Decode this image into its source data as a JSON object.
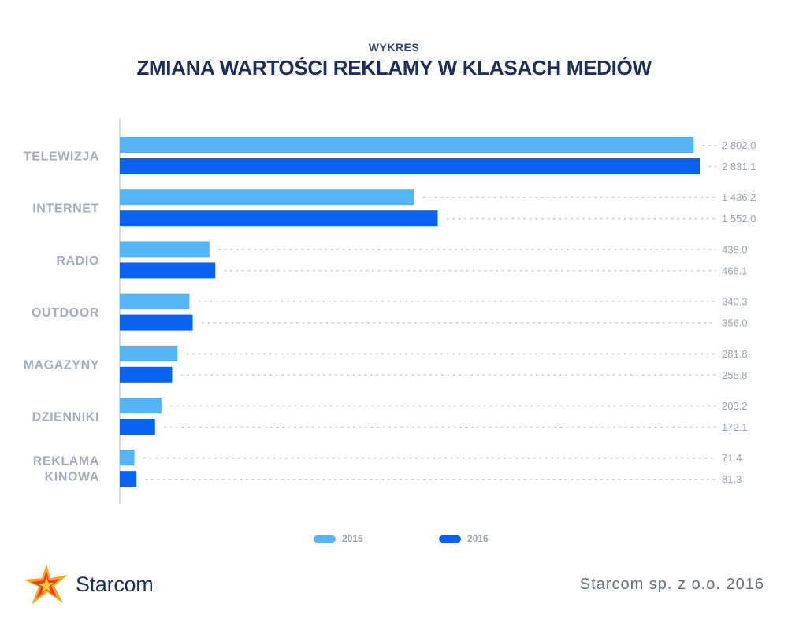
{
  "header": {
    "subtitle": "WYKRES",
    "title": "ZMIANA WARTOŚCI REKLAMY W KLASACH MEDIÓW"
  },
  "colors": {
    "series_2015": "#55b4f5",
    "series_2016": "#0a63f0",
    "label_gray": "#a3adbb",
    "title_navy": "#1d2f5c"
  },
  "chart_data": {
    "type": "bar",
    "orientation": "horizontal",
    "categories": [
      [
        "TELEWIZJA"
      ],
      [
        "INTERNET"
      ],
      [
        "RADIO"
      ],
      [
        "OUTDOOR"
      ],
      [
        "MAGAZYNY"
      ],
      [
        "DZIENNIKI"
      ],
      [
        "REKLAMA",
        "KINOWA"
      ]
    ],
    "series": [
      {
        "name": "2015",
        "values": [
          2802.0,
          1436.2,
          438.0,
          340.3,
          281.8,
          203.2,
          71.4
        ],
        "labels": [
          "2 802.0",
          "1 436.2",
          "438.0",
          "340.3",
          "281.8",
          "203.2",
          "71.4"
        ]
      },
      {
        "name": "2016",
        "values": [
          2831.1,
          1552.0,
          466.1,
          356.0,
          255.8,
          172.1,
          81.3
        ],
        "labels": [
          "2 831.1",
          "1 552.0",
          "466.1",
          "356.0",
          "255.8",
          "172.1",
          "81.3"
        ]
      }
    ],
    "xlim": [
      0,
      2831.1
    ],
    "grid": false,
    "legend": "bottom"
  },
  "legend": {
    "item_2015": "2015",
    "item_2016": "2016"
  },
  "logo": {
    "brand": "Starcom",
    "icon": "starcom-star-icon"
  },
  "footer": {
    "credit": "Starcom sp. z o.o. 2016"
  }
}
